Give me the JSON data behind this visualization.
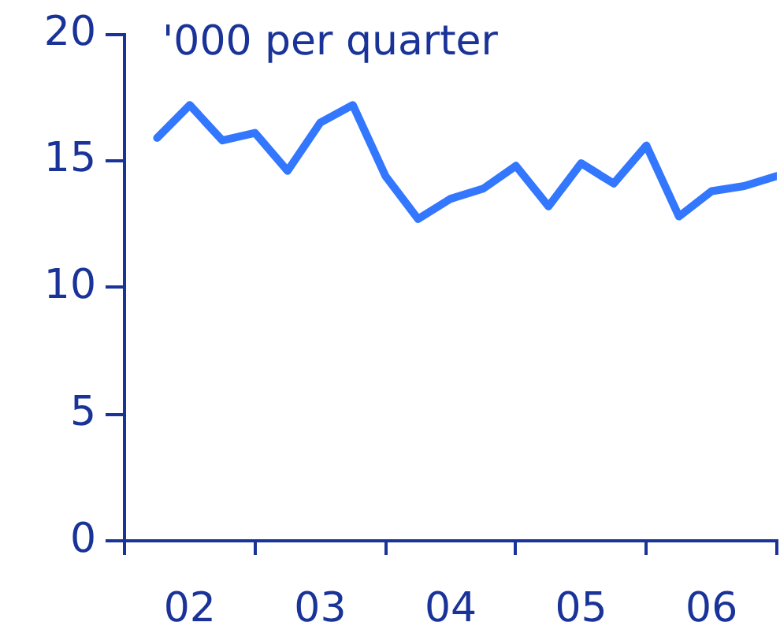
{
  "chart_data": {
    "type": "line",
    "ylabel": "'000 per quarter",
    "categories": [
      null,
      "02",
      null,
      null,
      null,
      "03",
      null,
      null,
      null,
      "04",
      null,
      null,
      null,
      "05",
      null,
      null,
      null,
      "06",
      null,
      null
    ],
    "series": [
      {
        "color": "#3377ff",
        "values": [
          15.9,
          17.2,
          15.8,
          16.1,
          14.6,
          16.5,
          17.2,
          14.4,
          12.7,
          13.5,
          13.9,
          14.8,
          13.2,
          14.9,
          14.1,
          15.6,
          12.8,
          13.8,
          14.0,
          14.4
        ]
      }
    ],
    "ylim": [
      0,
      20
    ],
    "yticks": [
      0,
      5,
      10,
      15,
      20
    ],
    "grid": false,
    "legend": false,
    "marker": "none",
    "line_style": "solid"
  }
}
